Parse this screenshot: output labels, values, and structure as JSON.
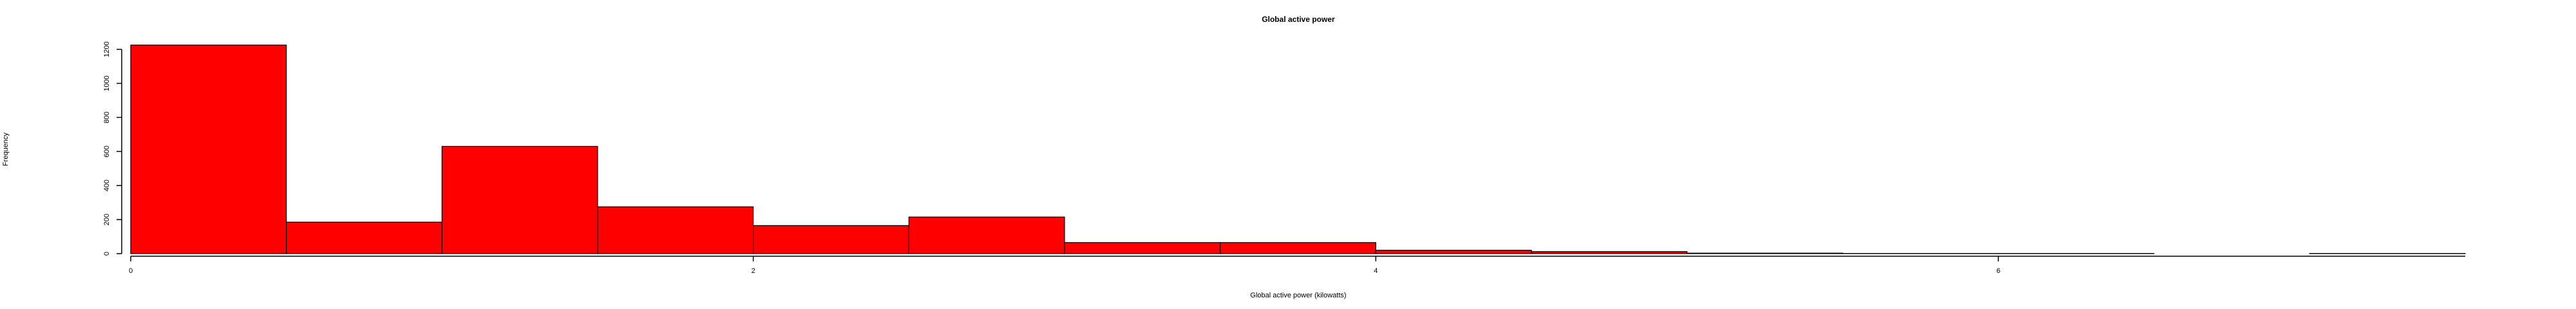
{
  "chart_data": {
    "type": "bar",
    "title": "Global active power",
    "xlabel": "Global active power (kilowatts)",
    "ylabel": "Frequency",
    "bin_edges": [
      0,
      0.5,
      1,
      1.5,
      2,
      2.5,
      3,
      3.5,
      4,
      4.5,
      5,
      5.5,
      6,
      6.5,
      7,
      7.5
    ],
    "values": [
      1225,
      185,
      630,
      275,
      165,
      215,
      65,
      65,
      20,
      12,
      3,
      1,
      1,
      0,
      1
    ],
    "x_ticks": [
      0,
      2,
      4,
      6
    ],
    "x_tick_labels": [
      "0",
      "2",
      "4",
      "6"
    ],
    "y_ticks": [
      0,
      200,
      400,
      600,
      800,
      1000,
      1200
    ],
    "y_tick_labels": [
      "0",
      "200",
      "400",
      "600",
      "800",
      "1000",
      "1200"
    ],
    "xlim": [
      0,
      7.5
    ],
    "ylim": [
      0,
      1225
    ],
    "bar_color": "#ff0000",
    "grid": false,
    "legend": "none"
  }
}
